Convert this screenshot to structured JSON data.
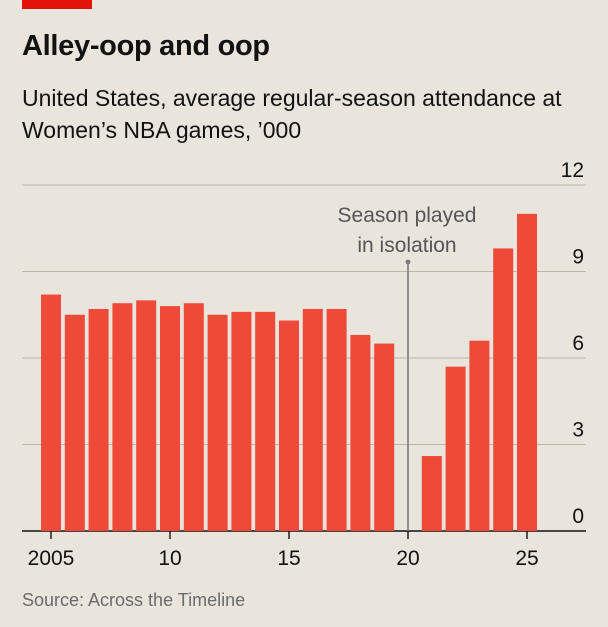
{
  "header": {
    "title": "Alley-oop and oop",
    "subtitle": "United States, average regular-season attendance at Women’s NBA games, ’000"
  },
  "footer": {
    "source": "Source: Across the Timeline"
  },
  "colors": {
    "background": "#e9e4dc",
    "bar": "#ef4a37",
    "grid": "#bcb6ad",
    "accent": "#e3120b",
    "annotation_line": "#7a7a7a"
  },
  "chart_data": {
    "type": "bar",
    "title": "Alley-oop and oop",
    "subtitle": "United States, average regular-season attendance at Women’s NBA games, ’000",
    "xlabel": "",
    "ylabel": "",
    "ylim": [
      0,
      12
    ],
    "yticks": [
      0,
      3,
      6,
      9,
      12
    ],
    "y_axis_side": "right",
    "grid": true,
    "xticks": [
      2005,
      2010,
      2015,
      2020,
      2025
    ],
    "xtick_labels": [
      "2005",
      "10",
      "15",
      "20",
      "25"
    ],
    "categories": [
      2005,
      2006,
      2007,
      2008,
      2009,
      2010,
      2011,
      2012,
      2013,
      2014,
      2015,
      2016,
      2017,
      2018,
      2019,
      2020,
      2021,
      2022,
      2023,
      2024,
      2025
    ],
    "values": [
      8.2,
      7.5,
      7.7,
      7.9,
      8.0,
      7.8,
      7.9,
      7.5,
      7.6,
      7.6,
      7.3,
      7.7,
      7.7,
      6.8,
      6.5,
      null,
      2.6,
      5.7,
      6.6,
      9.8,
      11.0
    ],
    "annotation": {
      "x": 2020,
      "text_lines": [
        "Season played",
        "in isolation"
      ]
    }
  }
}
